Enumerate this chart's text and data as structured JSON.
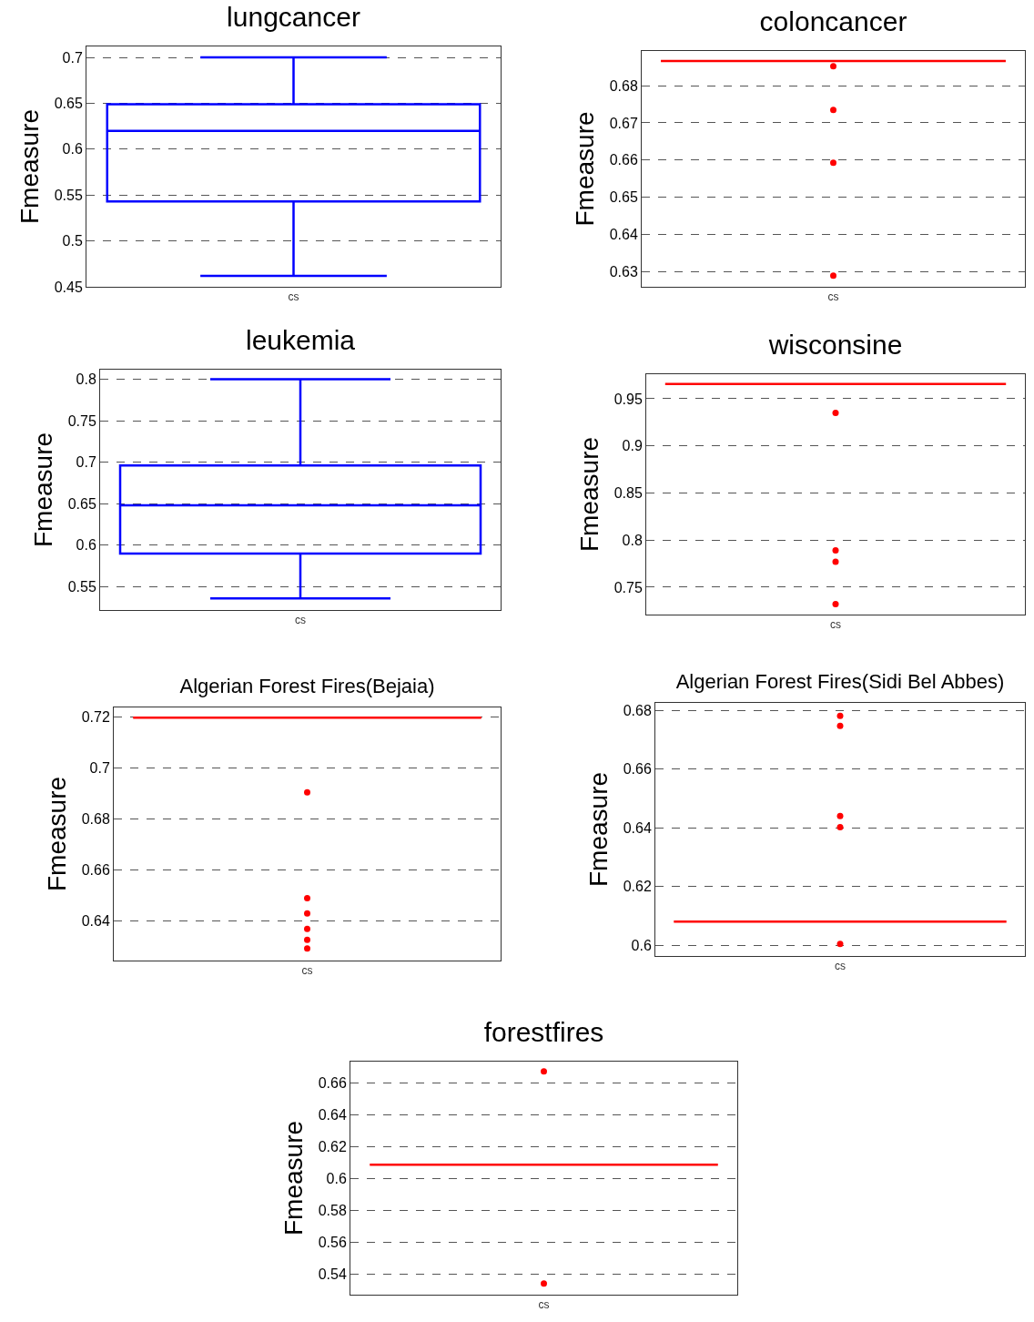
{
  "chart_data": [
    {
      "type": "box",
      "title": "lungcancer",
      "ylabel": "Fmeasure",
      "categories": [
        "cs"
      ],
      "ylim": [
        0.45,
        0.712
      ],
      "yticks": [
        0.45,
        0.5,
        0.55,
        0.6,
        0.65,
        0.7
      ],
      "grid": "y",
      "series": [
        {
          "color": "#0000ff",
          "boxes": [
            {
              "low": 0.462,
              "q1": 0.543,
              "median": 0.62,
              "q3": 0.649,
              "high": 0.7
            }
          ]
        }
      ]
    },
    {
      "type": "box",
      "title": "coloncancer",
      "ylabel": "Fmeasure",
      "categories": [
        "cs"
      ],
      "ylim": [
        0.626,
        0.6893
      ],
      "yticks": [
        0.63,
        0.64,
        0.65,
        0.66,
        0.67,
        0.68
      ],
      "grid": "y",
      "series": [
        {
          "color": "#ff0000",
          "boxes": [
            {
              "low": 0.6866,
              "q1": 0.6866,
              "median": 0.6866,
              "q3": 0.6866,
              "high": 0.6866,
              "outliers": [
                0.6852,
                0.6735,
                0.6593,
                0.629
              ]
            }
          ]
        }
      ]
    },
    {
      "type": "box",
      "title": "leukemia",
      "ylabel": "Fmeasure",
      "categories": [
        "cs"
      ],
      "ylim": [
        0.522,
        0.8115
      ],
      "yticks": [
        0.55,
        0.6,
        0.65,
        0.7,
        0.75,
        0.8
      ],
      "grid": "y",
      "series": [
        {
          "color": "#0000ff",
          "boxes": [
            {
              "low": 0.536,
              "q1": 0.59,
              "median": 0.648,
              "q3": 0.6962,
              "high": 0.8
            }
          ]
        }
      ]
    },
    {
      "type": "box",
      "title": "wisconsine",
      "ylabel": "Fmeasure",
      "categories": [
        "cs"
      ],
      "ylim": [
        0.721,
        0.976
      ],
      "yticks": [
        0.75,
        0.8,
        0.85,
        0.9,
        0.95
      ],
      "grid": "y",
      "series": [
        {
          "color": "#ff0000",
          "boxes": [
            {
              "low": 0.9657,
              "q1": 0.9657,
              "median": 0.9657,
              "q3": 0.9657,
              "high": 0.9657,
              "outliers": [
                0.935,
                0.789,
                0.777,
                0.732
              ]
            }
          ]
        }
      ]
    },
    {
      "type": "box",
      "title": "Algerian Forest Fires(Bejaia)",
      "ylabel": "Fmeasure",
      "categories": [
        "cs"
      ],
      "ylim": [
        0.6246,
        0.7236
      ],
      "yticks": [
        0.64,
        0.66,
        0.68,
        0.7,
        0.72
      ],
      "grid": "y",
      "series": [
        {
          "color": "#ff0000",
          "boxes": [
            {
              "low": 0.7196,
              "q1": 0.7196,
              "median": 0.7196,
              "q3": 0.7196,
              "high": 0.7196,
              "outliers": [
                0.6904,
                0.649,
                0.643,
                0.637,
                0.6327,
                0.6293
              ]
            }
          ]
        }
      ]
    },
    {
      "type": "box",
      "title": "Algerian Forest Fires(Sidi Bel Abbes)",
      "ylabel": "Fmeasure",
      "categories": [
        "cs"
      ],
      "ylim": [
        0.5963,
        0.6825
      ],
      "yticks": [
        0.6,
        0.62,
        0.64,
        0.66,
        0.68
      ],
      "grid": "y",
      "series": [
        {
          "color": "#ff0000",
          "boxes": [
            {
              "low": 0.608,
              "q1": 0.608,
              "median": 0.608,
              "q3": 0.608,
              "high": 0.608,
              "outliers": [
                0.6781,
                0.6747,
                0.644,
                0.6402,
                0.6004
              ]
            }
          ]
        }
      ]
    },
    {
      "type": "box",
      "title": "forestfires",
      "ylabel": "Fmeasure",
      "categories": [
        "cs"
      ],
      "ylim": [
        0.527,
        0.6732
      ],
      "yticks": [
        0.54,
        0.56,
        0.58,
        0.6,
        0.62,
        0.64,
        0.66
      ],
      "grid": "y",
      "series": [
        {
          "color": "#ff0000",
          "boxes": [
            {
              "low": 0.6085,
              "q1": 0.6085,
              "median": 0.6085,
              "q3": 0.6085,
              "high": 0.6085,
              "outliers": [
                0.667,
                0.534
              ]
            }
          ]
        }
      ]
    }
  ]
}
